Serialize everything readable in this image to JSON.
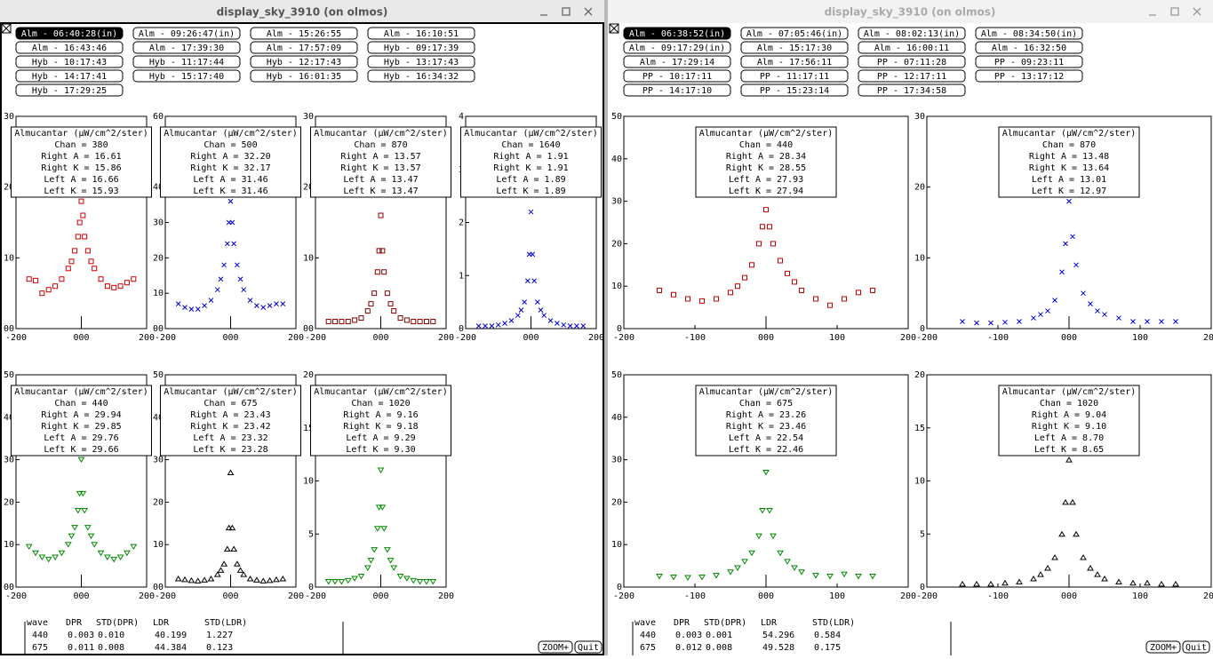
{
  "windows": [
    {
      "title": "display_sky_3910 (on olmos)",
      "active": true,
      "selected": 0,
      "buttons": [
        "Alm - 06:40:28(in)",
        "Alm - 09:26:47(in)",
        "Alm - 15:26:55",
        "Alm - 16:10:51",
        "Alm - 16:43:46",
        "Alm - 17:39:30",
        "Alm - 17:57:09",
        "Hyb - 09:17:39",
        "Hyb - 10:17:43",
        "Hyb - 11:17:44",
        "Hyb - 12:17:43",
        "Hyb - 13:17:43",
        "Hyb - 14:17:41",
        "Hyb - 15:17:40",
        "Hyb - 16:01:35",
        "Hyb - 16:34:32",
        "Hyb - 17:29:25"
      ],
      "plots": [
        {
          "color": "#cc0000",
          "marker": "square",
          "xlim": [
            -200,
            200
          ],
          "xticks": [
            -200,
            {
              "value": 0,
              "label": "000"
            },
            200
          ],
          "ylim": [
            0,
            30
          ],
          "yticks": [
            30,
            20,
            10,
            {
              "value": 0,
              "label": "00"
            }
          ],
          "legend": [
            "Almucantar (µW/cm^2/ster)",
            "Chan = 380",
            "Right A = 16.61",
            "Right K = 15.86",
            "Left A = 16.66",
            "Left K = 15.93"
          ],
          "x": [
            -160,
            -140,
            -120,
            -100,
            -80,
            -60,
            -40,
            -30,
            -20,
            -10,
            -5,
            0,
            5,
            10,
            20,
            30,
            40,
            60,
            80,
            100,
            120,
            140,
            160
          ],
          "values": [
            7,
            6.8,
            5,
            5.5,
            6,
            7,
            8.5,
            9.5,
            11,
            13,
            15,
            18,
            16,
            13,
            11,
            9.5,
            8.5,
            7,
            6,
            5.8,
            6,
            6.5,
            7
          ]
        },
        {
          "color": "#0000cc",
          "marker": "x",
          "xlim": [
            -200,
            200
          ],
          "xticks": [
            -200,
            {
              "value": 0,
              "label": "000"
            },
            200
          ],
          "ylim": [
            0,
            60
          ],
          "yticks": [
            60,
            40,
            30,
            20,
            10,
            {
              "value": 0,
              "label": "00"
            }
          ],
          "legend": [
            "Almucantar (µW/cm^2/ster)",
            "Chan = 500",
            "Right A = 32.20",
            "Right K = 32.17",
            "Left A = 31.46",
            "Left K = 31.46"
          ],
          "x": [
            -160,
            -140,
            -120,
            -100,
            -80,
            -60,
            -40,
            -30,
            -20,
            -10,
            -5,
            0,
            5,
            10,
            20,
            30,
            40,
            60,
            80,
            100,
            120,
            140,
            160
          ],
          "values": [
            7,
            6,
            5.5,
            5.5,
            6.5,
            8,
            11,
            14,
            18,
            24,
            30,
            36,
            30,
            24,
            18,
            14,
            11,
            8,
            6.5,
            6,
            6.5,
            7,
            7
          ]
        },
        {
          "color": "#880000",
          "marker": "square",
          "xlim": [
            -200,
            200
          ],
          "xticks": [
            -200,
            {
              "value": 0,
              "label": "000"
            },
            200
          ],
          "ylim": [
            0,
            30
          ],
          "yticks": [
            30,
            20,
            10,
            {
              "value": 0,
              "label": "00"
            }
          ],
          "legend": [
            "Almucantar (µW/cm^2/ster)",
            "Chan = 870",
            "Right A = 13.57",
            "Right K = 13.57",
            "Left A = 13.47",
            "Left K = 13.47"
          ],
          "x": [
            -160,
            -140,
            -120,
            -100,
            -80,
            -60,
            -40,
            -30,
            -20,
            -10,
            -5,
            0,
            5,
            10,
            20,
            30,
            40,
            60,
            80,
            100,
            120,
            140,
            160
          ],
          "values": [
            1,
            1,
            1,
            1,
            1.2,
            1.5,
            2.5,
            3.5,
            5,
            8,
            11,
            16,
            11,
            8,
            5,
            3.5,
            2.5,
            1.5,
            1.2,
            1,
            1,
            1,
            1
          ]
        },
        {
          "color": "#0000cc",
          "marker": "x",
          "xlim": [
            -200,
            200
          ],
          "xticks": [
            -200,
            {
              "value": 0,
              "label": "000"
            },
            200
          ],
          "ylim": [
            0,
            4
          ],
          "yticks": [
            4,
            3,
            2,
            1,
            0
          ],
          "legend": [
            "Almucantar (µW/cm^2/ster)",
            "Chan = 1640",
            "Right A = 1.91",
            "Right K = 1.91",
            "Left A = 1.89",
            "Left K = 1.89"
          ],
          "x": [
            -160,
            -140,
            -120,
            -100,
            -80,
            -60,
            -40,
            -30,
            -20,
            -10,
            -5,
            0,
            5,
            10,
            20,
            30,
            40,
            60,
            80,
            100,
            120,
            140,
            160
          ],
          "values": [
            0.05,
            0.05,
            0.05,
            0.07,
            0.1,
            0.15,
            0.25,
            0.35,
            0.5,
            0.9,
            1.4,
            2.2,
            1.4,
            0.9,
            0.5,
            0.35,
            0.25,
            0.15,
            0.1,
            0.07,
            0.05,
            0.05,
            0.05
          ]
        },
        {
          "color": "#008800",
          "marker": "tri-down",
          "xlim": [
            -200,
            200
          ],
          "xticks": [
            -200,
            {
              "value": 0,
              "label": "000"
            },
            200
          ],
          "ylim": [
            0,
            50
          ],
          "yticks": [
            50,
            40,
            30,
            20,
            10,
            {
              "value": 0,
              "label": "00"
            }
          ],
          "legend": [
            "Almucantar (µW/cm^2/ster)",
            "Chan = 440",
            "Right A = 29.94",
            "Right K = 29.85",
            "Left A = 29.76",
            "Left K = 29.66"
          ],
          "x": [
            -160,
            -140,
            -120,
            -100,
            -80,
            -60,
            -40,
            -30,
            -20,
            -10,
            -5,
            0,
            5,
            10,
            20,
            30,
            40,
            60,
            80,
            100,
            120,
            140,
            160
          ],
          "values": [
            9.5,
            8,
            7,
            6.5,
            7,
            8,
            10,
            12,
            14,
            18,
            22,
            30,
            22,
            18,
            14,
            12,
            10,
            8,
            7,
            6.5,
            7,
            8,
            9.5
          ]
        },
        {
          "color": "#000000",
          "marker": "tri-up",
          "xlim": [
            -200,
            200
          ],
          "xticks": [
            -200,
            {
              "value": 0,
              "label": "000"
            },
            200
          ],
          "ylim": [
            0,
            50
          ],
          "yticks": [
            50,
            40,
            30,
            20,
            10,
            {
              "value": 0,
              "label": "00"
            }
          ],
          "legend": [
            "Almucantar (µW/cm^2/ster)",
            "Chan = 675",
            "Right A = 23.43",
            "Right K = 23.42",
            "Left A = 23.32",
            "Left K = 23.28"
          ],
          "x": [
            -160,
            -140,
            -120,
            -100,
            -80,
            -60,
            -40,
            -30,
            -20,
            -10,
            -5,
            0,
            5,
            10,
            20,
            30,
            40,
            60,
            80,
            100,
            120,
            140,
            160
          ],
          "values": [
            2,
            1.8,
            1.6,
            1.5,
            1.7,
            2,
            3,
            4,
            5.5,
            9,
            14,
            27,
            14,
            9,
            5.5,
            4,
            3,
            2,
            1.7,
            1.5,
            1.6,
            1.8,
            2
          ]
        },
        {
          "color": "#008800",
          "marker": "tri-down",
          "xlim": [
            -200,
            200
          ],
          "xticks": [
            -200,
            {
              "value": 0,
              "label": "000"
            },
            200
          ],
          "ylim": [
            0,
            20
          ],
          "yticks": [
            20,
            15,
            10,
            5,
            0
          ],
          "legend": [
            "Almucantar (µW/cm^2/ster)",
            "Chan = 1020",
            "Right A = 9.16",
            "Right K = 9.18",
            "Left A = 9.29",
            "Left K = 9.30"
          ],
          "x": [
            -160,
            -140,
            -120,
            -100,
            -80,
            -60,
            -40,
            -30,
            -20,
            -10,
            -5,
            0,
            5,
            10,
            20,
            30,
            40,
            60,
            80,
            100,
            120,
            140,
            160
          ],
          "values": [
            0.5,
            0.5,
            0.5,
            0.6,
            0.8,
            1,
            1.8,
            2.5,
            3.5,
            5.5,
            7.5,
            11,
            7.5,
            5.5,
            3.5,
            2.5,
            1.8,
            1,
            0.8,
            0.6,
            0.5,
            0.5,
            0.5
          ]
        }
      ],
      "table": [
        [
          "wave",
          "DPR",
          "STD(DPR)",
          "LDR",
          "STD(LDR)"
        ],
        [
          "440",
          "0.003",
          "0.010",
          "40.199",
          "1.227"
        ],
        [
          "675",
          "0.011",
          "0.008",
          "44.384",
          "0.123"
        ]
      ],
      "controls": [
        "ZOOM+",
        "Quit"
      ]
    },
    {
      "title": "display_sky_3910 (on olmos)",
      "active": false,
      "selected": 0,
      "buttons": [
        "Alm - 06:38:52(in)",
        "Alm - 07:05:46(in)",
        "Alm - 08:02:13(in)",
        "Alm - 08:34:50(in)",
        "Alm - 09:17:29(in)",
        "Alm - 15:17:30",
        "Alm - 16:00:11",
        "Alm - 16:32:50",
        "Alm - 17:29:14",
        "Alm - 17:56:11",
        "PP - 07:11:28",
        "PP - 09:23:11",
        "PP - 10:17:11",
        "PP - 11:17:11",
        "PP - 12:17:11",
        "PP - 13:17:12",
        "PP - 14:17:10",
        "PP - 15:23:14",
        "PP - 17:34:58"
      ],
      "plots": [
        {
          "color": "#cc0000",
          "marker": "square",
          "xlim": [
            -200,
            200
          ],
          "xticks": [
            -200,
            -100,
            {
              "value": 0,
              "label": "000"
            },
            100,
            200
          ],
          "ylim": [
            0,
            50
          ],
          "yticks": [
            50,
            40,
            30,
            20,
            10,
            0
          ],
          "legend": [
            "Almucantar (µW/cm^2/ster)",
            "Chan = 440",
            "Right A = 28.34",
            "Right K = 28.55",
            "Left A = 27.93",
            "Left K = 27.94"
          ],
          "x": [
            -150,
            -130,
            -110,
            -90,
            -70,
            -50,
            -40,
            -30,
            -20,
            -10,
            -5,
            0,
            5,
            10,
            20,
            30,
            40,
            50,
            70,
            90,
            110,
            130,
            150
          ],
          "values": [
            9,
            8,
            7,
            6.5,
            7,
            8.5,
            10,
            12,
            15,
            20,
            24,
            28,
            24,
            20,
            16,
            13,
            11,
            9,
            7,
            5.5,
            7,
            8.5,
            9
          ]
        },
        {
          "color": "#0000cc",
          "marker": "x",
          "xlim": [
            -200,
            200
          ],
          "xticks": [
            -200,
            -100,
            {
              "value": 0,
              "label": "000"
            },
            100,
            200
          ],
          "ylim": [
            0,
            30
          ],
          "yticks": [
            30,
            20,
            10,
            0
          ],
          "legend": [
            "Almucantar (µW/cm^2/ster)",
            "Chan = 870",
            "Right A = 13.48",
            "Right K = 13.64",
            "Left A = 13.01",
            "Left K = 12.97"
          ],
          "x": [
            -150,
            -130,
            -110,
            -90,
            -70,
            -50,
            -40,
            -30,
            -20,
            -10,
            -5,
            0,
            5,
            10,
            20,
            30,
            40,
            50,
            70,
            90,
            110,
            130,
            150
          ],
          "values": [
            1,
            0.8,
            0.8,
            0.9,
            1,
            1.5,
            2,
            2.5,
            4,
            8,
            12,
            18,
            13,
            9,
            5,
            3.5,
            2.5,
            2,
            1.5,
            1,
            1,
            1,
            1
          ]
        },
        {
          "color": "#008800",
          "marker": "tri-down",
          "xlim": [
            -200,
            200
          ],
          "xticks": [
            -200,
            -100,
            {
              "value": 0,
              "label": "000"
            },
            100,
            200
          ],
          "ylim": [
            0,
            50
          ],
          "yticks": [
            50,
            40,
            30,
            20,
            10,
            0
          ],
          "legend": [
            "Almucantar (µW/cm^2/ster)",
            "Chan = 675",
            "Right A = 23.26",
            "Right K = 23.46",
            "Left A = 22.54",
            "Left K = 22.46"
          ],
          "x": [
            -150,
            -130,
            -110,
            -90,
            -70,
            -50,
            -40,
            -30,
            -20,
            -10,
            -5,
            0,
            5,
            10,
            20,
            30,
            40,
            50,
            70,
            90,
            110,
            130,
            150
          ],
          "values": [
            2.5,
            2.3,
            2.2,
            2.3,
            2.7,
            3.5,
            4.5,
            6,
            8,
            12,
            18,
            27,
            18,
            12,
            8,
            6,
            4.5,
            3.5,
            2.7,
            2.5,
            3,
            2.5,
            2.5
          ]
        },
        {
          "color": "#000000",
          "marker": "tri-up",
          "xlim": [
            -200,
            200
          ],
          "xticks": [
            -200,
            -100,
            {
              "value": 0,
              "label": "000"
            },
            100,
            200
          ],
          "ylim": [
            0,
            20
          ],
          "yticks": [
            20,
            15,
            10,
            5,
            0
          ],
          "legend": [
            "Almucantar (µW/cm^2/ster)",
            "Chan = 1020",
            "Right A = 9.04",
            "Right K = 9.10",
            "Left A = 8.70",
            "Left K = 8.65"
          ],
          "x": [
            -150,
            -130,
            -110,
            -90,
            -70,
            -50,
            -40,
            -30,
            -20,
            -10,
            -5,
            0,
            5,
            10,
            20,
            30,
            40,
            50,
            70,
            90,
            110,
            130,
            150
          ],
          "values": [
            0.3,
            0.3,
            0.3,
            0.4,
            0.5,
            0.8,
            1.2,
            1.8,
            2.8,
            5,
            8,
            12,
            8,
            5,
            2.8,
            1.8,
            1.2,
            0.8,
            0.5,
            0.4,
            0.4,
            0.3,
            0.3
          ]
        }
      ],
      "table": [
        [
          "wave",
          "DPR",
          "STD(DPR)",
          "LDR",
          "STD(LDR)"
        ],
        [
          "440",
          "0.003",
          "0.001",
          "54.296",
          "0.584"
        ],
        [
          "675",
          "0.012",
          "0.008",
          "49.528",
          "0.175"
        ]
      ],
      "controls": [
        "ZOOM+",
        "Quit"
      ]
    }
  ]
}
